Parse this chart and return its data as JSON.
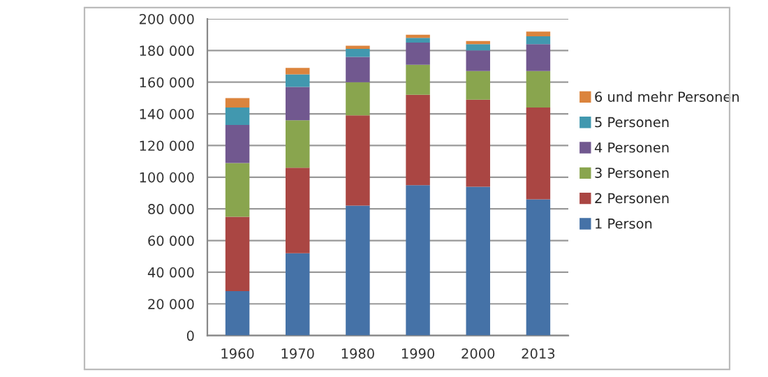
{
  "chart_data": {
    "type": "bar",
    "stacked": true,
    "categories": [
      "1960",
      "1970",
      "1980",
      "1990",
      "2000",
      "2013"
    ],
    "series": [
      {
        "name": "1 Person",
        "color": "#4572a7",
        "values": [
          28000,
          52000,
          82000,
          95000,
          94000,
          86000
        ]
      },
      {
        "name": "2 Personen",
        "color": "#aa4643",
        "values": [
          47000,
          54000,
          57000,
          57000,
          55000,
          58000
        ]
      },
      {
        "name": "3 Personen",
        "color": "#89a54e",
        "values": [
          34000,
          30000,
          21000,
          19000,
          18000,
          23000
        ]
      },
      {
        "name": "4 Personen",
        "color": "#71588f",
        "values": [
          24000,
          21000,
          16000,
          14000,
          13000,
          17000
        ]
      },
      {
        "name": "5 Personen",
        "color": "#4198af",
        "values": [
          11000,
          8000,
          5000,
          3000,
          4000,
          5000
        ]
      },
      {
        "name": "6 und mehr Personen",
        "color": "#db843d",
        "values": [
          6000,
          4000,
          2000,
          2000,
          2000,
          3000
        ]
      }
    ],
    "ylim": [
      0,
      200000
    ],
    "yticks": [
      {
        "value": 0,
        "label": "0"
      },
      {
        "value": 20000,
        "label": "20 000"
      },
      {
        "value": 40000,
        "label": "40 000"
      },
      {
        "value": 60000,
        "label": "60 000"
      },
      {
        "value": 80000,
        "label": "80 000"
      },
      {
        "value": 100000,
        "label": "100 000"
      },
      {
        "value": 120000,
        "label": "120 000"
      },
      {
        "value": 140000,
        "label": "140 000"
      },
      {
        "value": 160000,
        "label": "160 000"
      },
      {
        "value": 180000,
        "label": "180 000"
      },
      {
        "value": 200000,
        "label": "200 000"
      }
    ],
    "grid": "y",
    "legend": "right"
  }
}
